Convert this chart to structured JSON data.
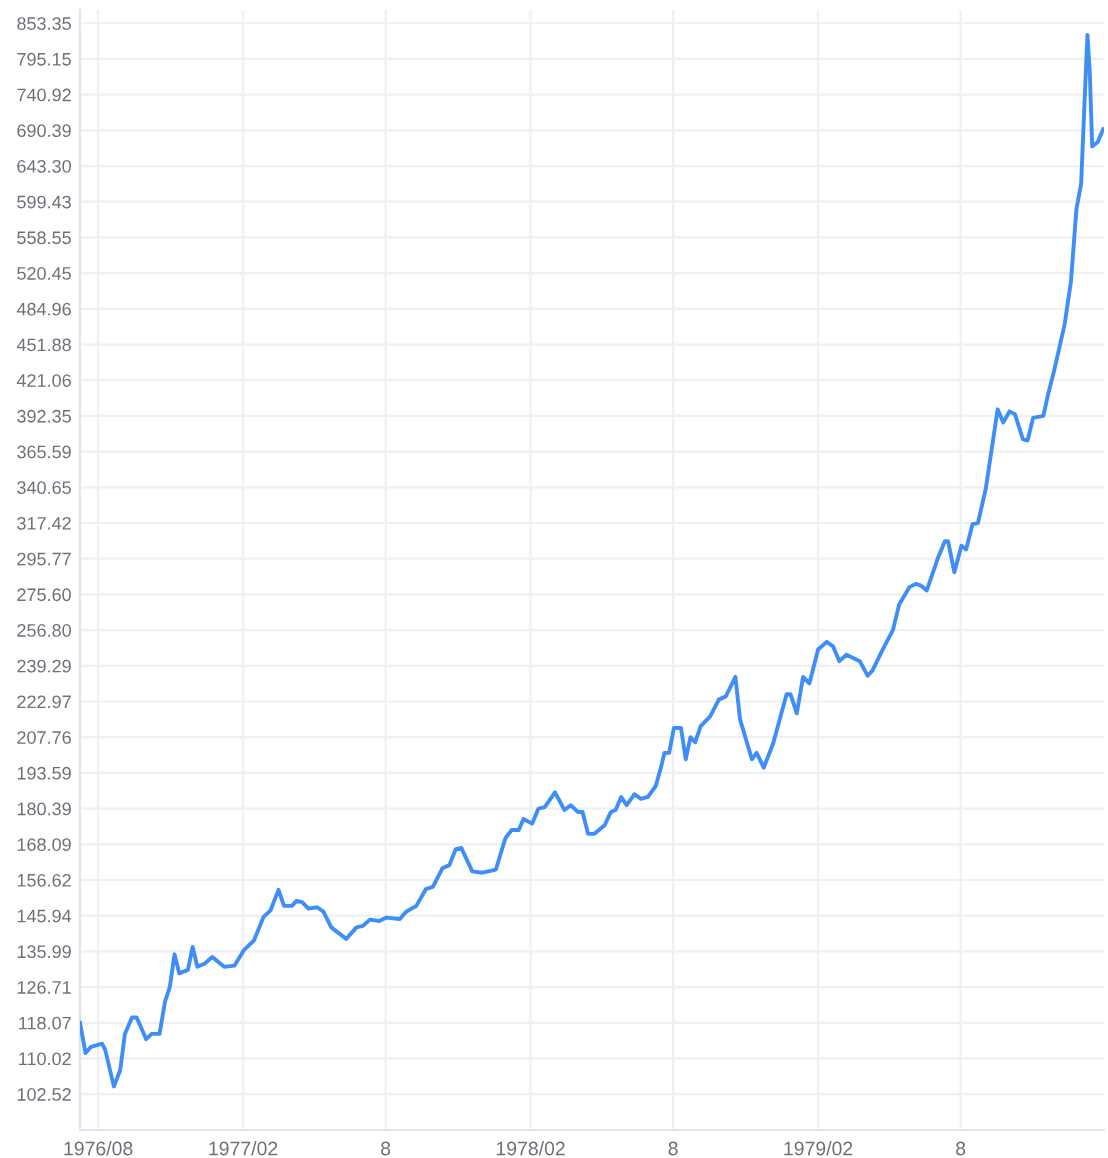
{
  "chart_data": {
    "type": "line",
    "log": "y",
    "grid": true,
    "marker": "none",
    "line_style": "solid",
    "xlim": [
      "1976-07-09",
      "1980-01-30"
    ],
    "ylim": [
      95.5,
      876
    ],
    "xticks": [
      {
        "value": "1976-08-01",
        "label": "1976/08"
      },
      {
        "value": "1977-02-01",
        "label": "1977/02"
      },
      {
        "value": "1977-08-01",
        "label": "8"
      },
      {
        "value": "1978-02-01",
        "label": "1978/02"
      },
      {
        "value": "1978-08-01",
        "label": "8"
      },
      {
        "value": "1979-02-01",
        "label": "1979/02"
      },
      {
        "value": "1979-08-01",
        "label": "8"
      }
    ],
    "yticks": [
      102.52,
      110.02,
      118.07,
      126.71,
      135.99,
      145.94,
      156.62,
      168.09,
      180.39,
      193.59,
      207.76,
      222.97,
      239.29,
      {
        "value": 256.8,
        "label": "256.80"
      },
      {
        "value": 275.6,
        "label": "275.60"
      },
      295.77,
      317.42,
      340.65,
      365.59,
      392.35,
      421.06,
      451.88,
      484.96,
      520.45,
      558.55,
      599.43,
      {
        "value": 643.3,
        "label": "643.30"
      },
      690.39,
      740.92,
      795.15,
      853.35
    ],
    "series": [
      {
        "color": "#3f8ef7",
        "x": [
          "1976-07-09",
          "1976-07-16",
          "1976-07-23",
          "1976-08-06",
          "1976-08-10",
          "1976-08-21",
          "1976-08-29",
          "1976-09-04",
          "1976-09-13",
          "1976-09-19",
          "1976-10-01",
          "1976-10-08",
          "1976-10-18",
          "1976-10-25",
          "1976-10-31",
          "1976-11-06",
          "1976-11-12",
          "1976-11-23",
          "1976-11-29",
          "1976-12-05",
          "1976-12-14",
          "1976-12-24",
          "1977-01-08",
          "1977-01-21",
          "1977-02-02",
          "1977-02-15",
          "1977-02-27",
          "1977-03-08",
          "1977-03-18",
          "1977-03-25",
          "1977-04-04",
          "1977-04-10",
          "1977-04-17",
          "1977-04-25",
          "1977-05-06",
          "1977-05-14",
          "1977-05-24",
          "1977-06-12",
          "1977-06-25",
          "1977-07-03",
          "1977-07-12",
          "1977-07-24",
          "1977-08-02",
          "1977-08-19",
          "1977-08-27",
          "1977-09-09",
          "1977-09-21",
          "1977-09-30",
          "1977-10-12",
          "1977-10-21",
          "1977-10-29",
          "1977-11-05",
          "1977-11-19",
          "1977-12-02",
          "1977-12-19",
          "1977-12-31",
          "1978-01-08",
          "1978-01-17",
          "1978-01-23",
          "1978-02-03",
          "1978-02-11",
          "1978-02-19",
          "1978-03-04",
          "1978-03-16",
          "1978-03-24",
          "1978-04-02",
          "1978-04-08",
          "1978-04-15",
          "1978-04-23",
          "1978-05-06",
          "1978-05-14",
          "1978-05-20",
          "1978-05-27",
          "1978-06-03",
          "1978-06-13",
          "1978-06-21",
          "1978-06-30",
          "1978-07-10",
          "1978-07-16",
          "1978-07-21",
          "1978-07-27",
          "1978-08-02",
          "1978-08-11",
          "1978-08-17",
          "1978-08-23",
          "1978-08-29",
          "1978-09-05",
          "1978-09-17",
          "1978-09-28",
          "1978-10-07",
          "1978-10-19",
          "1978-10-25",
          "1978-11-09",
          "1978-11-15",
          "1978-11-24",
          "1978-12-06",
          "1978-12-23",
          "1978-12-28",
          "1979-01-05",
          "1979-01-13",
          "1979-01-21",
          "1979-02-01",
          "1979-02-12",
          "1979-02-20",
          "1979-02-28",
          "1979-03-09",
          "1979-03-26",
          "1979-04-05",
          "1979-04-11",
          "1979-04-24",
          "1979-05-07",
          "1979-05-15",
          "1979-05-28",
          "1979-06-05",
          "1979-06-11",
          "1979-06-19",
          "1979-06-28",
          "1979-07-03",
          "1979-07-12",
          "1979-07-16",
          "1979-07-24",
          "1979-08-02",
          "1979-08-08",
          "1979-08-16",
          "1979-08-23",
          "1979-09-02",
          "1979-09-17",
          "1979-09-24",
          "1979-10-02",
          "1979-10-09",
          "1979-10-19",
          "1979-10-25",
          "1979-11-01",
          "1979-11-14",
          "1979-11-20",
          "1979-11-28",
          "1979-12-11",
          "1979-12-19",
          "1979-12-26",
          "1980-01-01",
          "1980-01-07",
          "1980-01-09",
          "1980-01-12",
          "1980-01-15",
          "1980-01-22",
          "1980-01-29"
        ],
        "values": [
          118.07,
          111.2,
          112.6,
          113.3,
          111.9,
          104.1,
          107.5,
          115.5,
          119.3,
          119.3,
          114.3,
          115.5,
          115.5,
          123.2,
          126.7,
          135.2,
          130.2,
          131.1,
          137.2,
          131.9,
          132.7,
          134.5,
          131.9,
          132.2,
          136.3,
          139.0,
          145.6,
          147.5,
          153.6,
          148.8,
          148.8,
          150.3,
          149.9,
          148.0,
          148.4,
          147.1,
          142.6,
          139.4,
          142.6,
          143.0,
          144.8,
          144.4,
          145.4,
          145.0,
          147.1,
          148.8,
          153.8,
          154.5,
          160.3,
          161.3,
          166.5,
          166.9,
          159.3,
          158.9,
          159.9,
          170.1,
          172.9,
          172.9,
          176.7,
          175.1,
          180.4,
          180.9,
          186.3,
          179.9,
          181.6,
          179.2,
          179.2,
          171.6,
          171.6,
          174.5,
          179.2,
          179.9,
          184.6,
          181.6,
          185.6,
          183.9,
          184.6,
          188.7,
          195.1,
          201.4,
          201.4,
          211.6,
          211.6,
          198.9,
          207.8,
          205.7,
          212.4,
          216.5,
          223.8,
          225.3,
          234.1,
          215.1,
          198.9,
          201.4,
          195.6,
          205.2,
          226.2,
          226.2,
          217.8,
          234.1,
          231.1,
          247.1,
          250.9,
          248.7,
          241.5,
          244.6,
          241.5,
          234.6,
          237.0,
          247.1,
          256.8,
          270.2,
          279.6,
          281.4,
          280.6,
          277.8,
          289.3,
          296.0,
          306.2,
          306.2,
          288.0,
          303.5,
          301.2,
          316.7,
          317.4,
          340.0,
          397.5,
          387.2,
          395.9,
          393.6,
          374.7,
          373.7,
          390.8,
          392.35,
          409.3,
          429.9,
          470.2,
          511.6,
          590.7,
          621.4,
          776.8,
          834.0,
          773.0,
          668.6,
          674.5,
          692.0
        ]
      }
    ]
  }
}
